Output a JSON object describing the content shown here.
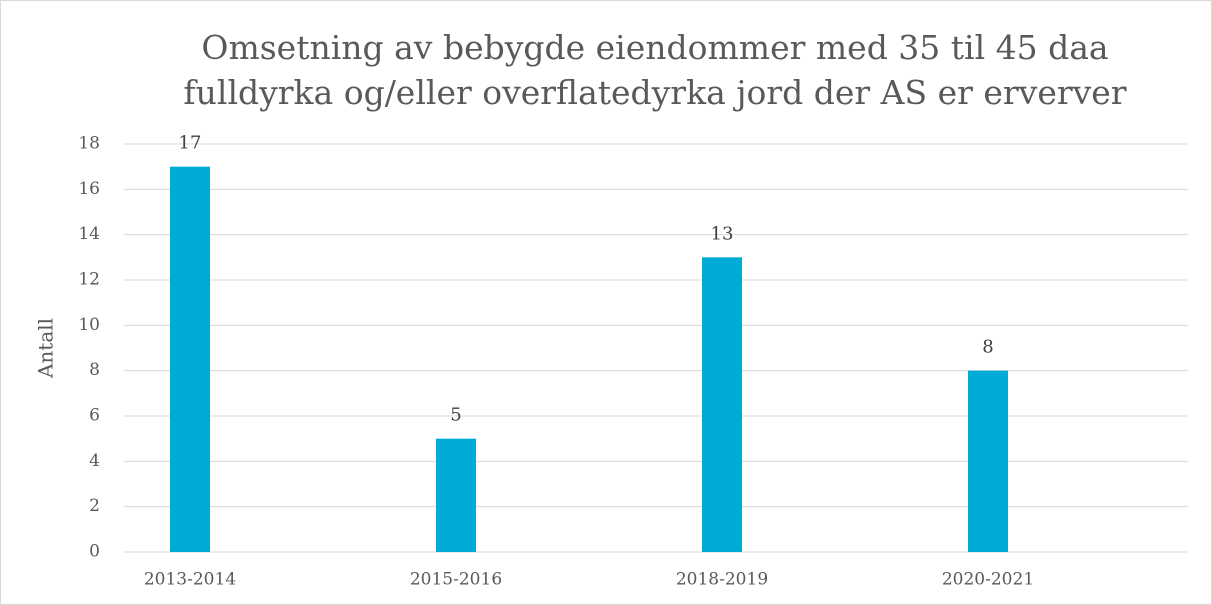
{
  "chart_data": {
    "type": "bar",
    "title": [
      "Omsetning av bebygde eiendommer med 35 til 45 daa",
      "fulldyrka og/eller overflatedyrka jord der AS er erverver"
    ],
    "y_label": "Antall",
    "categories": [
      "2013-2014",
      "2015-2016",
      "2018-2019",
      "2020-2021"
    ],
    "values": [
      17,
      5,
      13,
      8
    ],
    "color": "#00acd6",
    "ylim": [
      0,
      18
    ],
    "yticks": [
      0,
      2,
      4,
      6,
      8,
      10,
      12,
      14,
      16,
      18
    ],
    "grid": true
  }
}
